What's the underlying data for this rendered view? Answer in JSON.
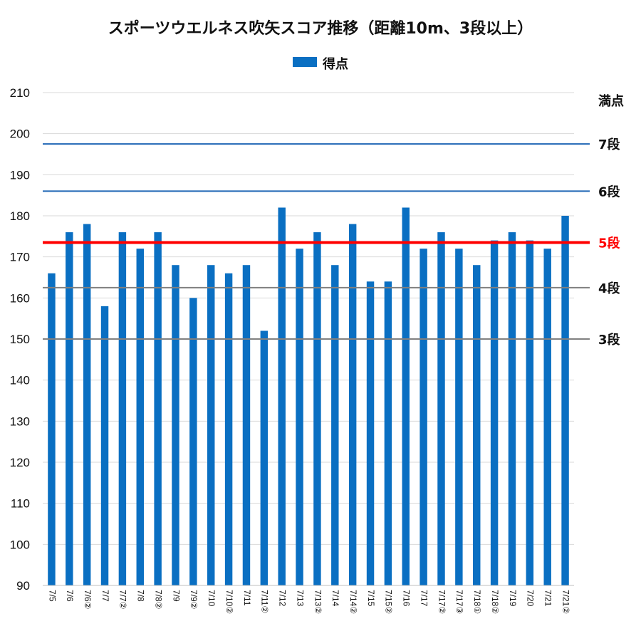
{
  "chart_data": {
    "type": "bar",
    "title": "スポーツウエルネス吹矢スコア推移（距離10m、3段以上）",
    "legend": {
      "entries": [
        "得点"
      ],
      "placement": "top-center"
    },
    "bar_color": "#0a6fc2",
    "ylim": [
      90,
      210
    ],
    "yticks": [
      90,
      100,
      110,
      120,
      130,
      140,
      150,
      160,
      170,
      180,
      190,
      200,
      210
    ],
    "grid": true,
    "categories": [
      "7/5",
      "7/6",
      "7/6②",
      "7/7",
      "7/7②",
      "7/8",
      "7/8②",
      "7/9",
      "7/9②",
      "7/10",
      "7/10②",
      "7/11",
      "7/11②",
      "7/12",
      "7/13",
      "7/13②",
      "7/14",
      "7/14②",
      "7/15",
      "7/15②",
      "7/16",
      "7/17",
      "7/17②",
      "7/17③",
      "7/18①",
      "7/18②",
      "7/19",
      "7/20",
      "7/21",
      "7/21②"
    ],
    "series": [
      {
        "name": "得点",
        "values": [
          166,
          176,
          178,
          158,
          176,
          172,
          176,
          168,
          160,
          168,
          166,
          168,
          152,
          182,
          172,
          176,
          168,
          178,
          164,
          164,
          182,
          172,
          176,
          172,
          168,
          174,
          176,
          174,
          172,
          180
        ]
      }
    ],
    "reference_lines": [
      {
        "label": "満点",
        "value": 210,
        "color": "#d9d9d9",
        "label_color": "#111111"
      },
      {
        "label": "7段",
        "value": 197.5,
        "color": "#1f66b5",
        "label_color": "#111111"
      },
      {
        "label": "6段",
        "value": 186,
        "color": "#1f66b5",
        "label_color": "#111111"
      },
      {
        "label": "5段",
        "value": 173.5,
        "color": "#ff0000",
        "label_color": "#ff0000"
      },
      {
        "label": "4段",
        "value": 162.5,
        "color": "#808080",
        "label_color": "#111111"
      },
      {
        "label": "3段",
        "value": 150,
        "color": "#808080",
        "label_color": "#111111"
      }
    ]
  }
}
